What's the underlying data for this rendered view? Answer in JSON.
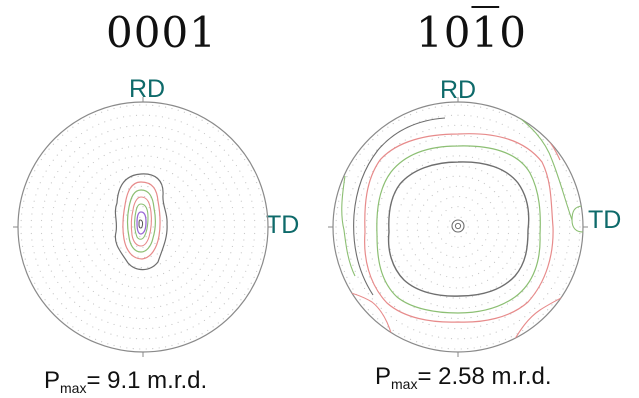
{
  "figure": {
    "left": {
      "title": "0001",
      "rd_label": "RD",
      "td_label": "TD",
      "pmax_prefix": "P",
      "pmax_sub": "max",
      "pmax_value": "= 9.1 m.r.d."
    },
    "right": {
      "title_pre": "10",
      "title_bar": "1",
      "title_post": "0",
      "rd_label": "RD",
      "td_label": "TD",
      "pmax_prefix": "P",
      "pmax_sub": "max",
      "pmax_value": "= 2.58 m.r.d."
    }
  },
  "colors": {
    "label_teal": "#0e6a6a",
    "contour_grey": "#6e6e6e",
    "contour_red": "#e78b8b",
    "contour_green": "#8cbf73",
    "contour_purple": "#9a6ad6",
    "dots": "#c8c8c8"
  }
}
